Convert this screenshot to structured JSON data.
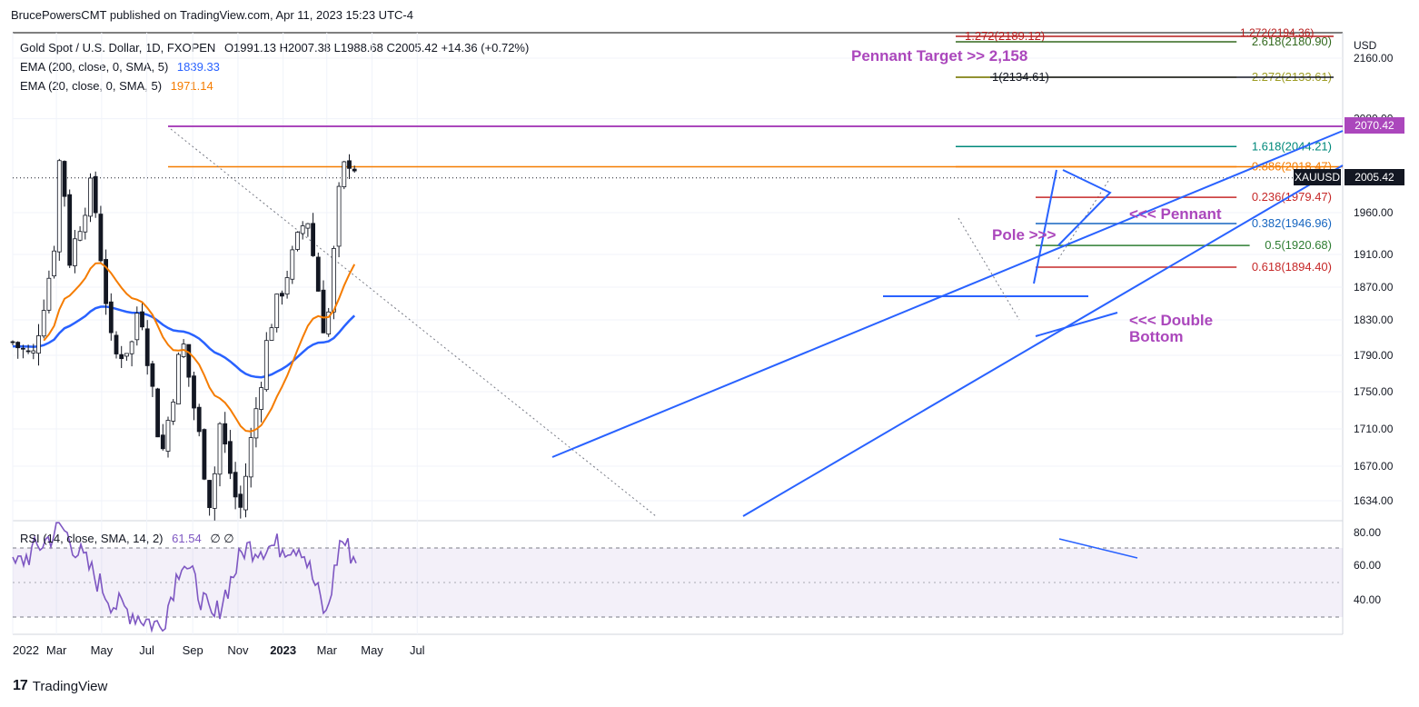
{
  "publisher": "BrucePowersCMT published on TradingView.com, Apr 11, 2023 15:23 UTC-4",
  "footer": {
    "brand": "TradingView",
    "logo": "tradingview-logo-icon"
  },
  "legend": {
    "symbol": "Gold Spot / U.S. Dollar, 1D, FXOPEN",
    "ohlc": "O1991.13 H2007.38 L1988.68 C2005.42 +14.36 (+0.72%)",
    "ema200_label": "EMA (200, close, 0, SMA, 5)",
    "ema200_value": "1839.33",
    "ema20_label": "EMA (20, close, 0, SMA, 5)",
    "ema20_value": "1971.14",
    "rsi_label": "RSI (14, close, SMA, 14, 2)",
    "rsi_value": "61.54",
    "rsi_extra": "∅ ∅"
  },
  "colors": {
    "up": "#26a69a",
    "down": "#ef5350",
    "bar": "#131722",
    "ema200": "#2962ff",
    "ema20": "#f57c00",
    "trend": "#2962ff",
    "annotation": "#ab47bc",
    "rsi": "#7e57c2"
  },
  "chart_data": {
    "type": "candlestick",
    "title": "Gold Spot / U.S. Dollar, 1D",
    "y_unit": "USD",
    "y_range": [
      1610,
      2200
    ],
    "y_ticks": [
      "2160.00",
      "2080.00",
      "1960.00",
      "1910.00",
      "1870.00",
      "1830.00",
      "1790.00",
      "1750.00",
      "1710.00",
      "1670.00",
      "1634.00"
    ],
    "x_labels": [
      "2022",
      "Mar",
      "May",
      "Jul",
      "Sep",
      "Nov",
      "2023",
      "Mar",
      "May",
      "Jul"
    ],
    "price_tags": [
      {
        "label": "2070.42",
        "color": "#ab47bc"
      },
      {
        "label": "2005.42",
        "color": "#131722"
      }
    ],
    "symbol_tag": "XAUUSD",
    "swing_points": [
      {
        "date": "2022-01-01",
        "price": 1805
      },
      {
        "date": "2022-01-28",
        "price": 1786
      },
      {
        "date": "2022-02-25",
        "price": 1910
      },
      {
        "date": "2022-03-08",
        "price": 2070
      },
      {
        "date": "2022-03-16",
        "price": 1895
      },
      {
        "date": "2022-04-18",
        "price": 1998
      },
      {
        "date": "2022-05-16",
        "price": 1787
      },
      {
        "date": "2022-06-14",
        "price": 1805
      },
      {
        "date": "2022-06-20",
        "price": 1860
      },
      {
        "date": "2022-07-21",
        "price": 1680
      },
      {
        "date": "2022-08-18",
        "price": 1807
      },
      {
        "date": "2022-09-28",
        "price": 1615
      },
      {
        "date": "2022-10-04",
        "price": 1728
      },
      {
        "date": "2022-11-03",
        "price": 1618
      },
      {
        "date": "2022-12-13",
        "price": 1820
      },
      {
        "date": "2023-02-02",
        "price": 1960
      },
      {
        "date": "2023-02-28",
        "price": 1804
      },
      {
        "date": "2023-03-20",
        "price": 2010
      },
      {
        "date": "2023-04-04",
        "price": 2032
      },
      {
        "date": "2023-04-11",
        "price": 2005.42
      }
    ],
    "ema200": [
      {
        "date": "2022-01-01",
        "value": 1800
      },
      {
        "date": "2022-05-10",
        "value": 1860
      },
      {
        "date": "2022-08-01",
        "value": 1830
      },
      {
        "date": "2022-11-01",
        "value": 1752
      },
      {
        "date": "2023-02-01",
        "value": 1800
      },
      {
        "date": "2023-04-11",
        "value": 1839.33
      }
    ],
    "ema20": [
      {
        "date": "2022-03-16",
        "value": 1950
      },
      {
        "date": "2022-05-25",
        "value": 1860
      },
      {
        "date": "2022-07-21",
        "value": 1760
      },
      {
        "date": "2022-11-03",
        "value": 1665
      },
      {
        "date": "2023-02-02",
        "value": 1925
      },
      {
        "date": "2023-04-11",
        "value": 1971.14
      }
    ],
    "fibonacci": [
      {
        "label": "1.272(2189.12)",
        "price": 2189.12,
        "color": "#b71c1c"
      },
      {
        "label": "2.618(2180.90)",
        "price": 2180.9,
        "color": "#33691e"
      },
      {
        "label": "2.272(2133.61)",
        "price": 2133.61,
        "color": "#9e9d24"
      },
      {
        "label": "1(2134.61)",
        "price": 2134.61,
        "color": "#131722"
      },
      {
        "label": "1.618(2044.21)",
        "price": 2044.21,
        "color": "#00897b"
      },
      {
        "label": "0.886(2018.47)",
        "price": 2018.47,
        "color": "#f57c00"
      },
      {
        "label": "0.236(1979.47)",
        "price": 1979.47,
        "color": "#c62828"
      },
      {
        "label": "0.382(1946.96)",
        "price": 1946.96,
        "color": "#1565c0"
      },
      {
        "label": "0.5(1920.68)",
        "price": 1920.68,
        "color": "#2e7d32"
      },
      {
        "label": "0.618(1894.40)",
        "price": 1894.4,
        "color": "#c62828"
      }
    ],
    "annotations": [
      {
        "text": "Pennant Target >> 2,158"
      },
      {
        "text": "<<< Pennant"
      },
      {
        "text": "Pole >>>"
      },
      {
        "text": "<<< Double"
      },
      {
        "text": "Bottom"
      },
      {
        "text": "1.272(2194.36)"
      }
    ],
    "rsi": {
      "range": [
        20,
        90
      ],
      "ticks": [
        "80.00",
        "60.00",
        "40.00"
      ],
      "overbought": 70,
      "oversold": 30,
      "points": [
        {
          "date": "2022-01-01",
          "value": 58
        },
        {
          "date": "2022-03-08",
          "value": 82
        },
        {
          "date": "2022-05-16",
          "value": 38
        },
        {
          "date": "2022-07-21",
          "value": 24
        },
        {
          "date": "2022-08-18",
          "value": 65
        },
        {
          "date": "2022-09-28",
          "value": 27
        },
        {
          "date": "2022-11-10",
          "value": 70
        },
        {
          "date": "2023-01-25",
          "value": 72
        },
        {
          "date": "2023-02-28",
          "value": 30
        },
        {
          "date": "2023-03-20",
          "value": 76
        },
        {
          "date": "2023-04-11",
          "value": 61.54
        }
      ]
    }
  }
}
